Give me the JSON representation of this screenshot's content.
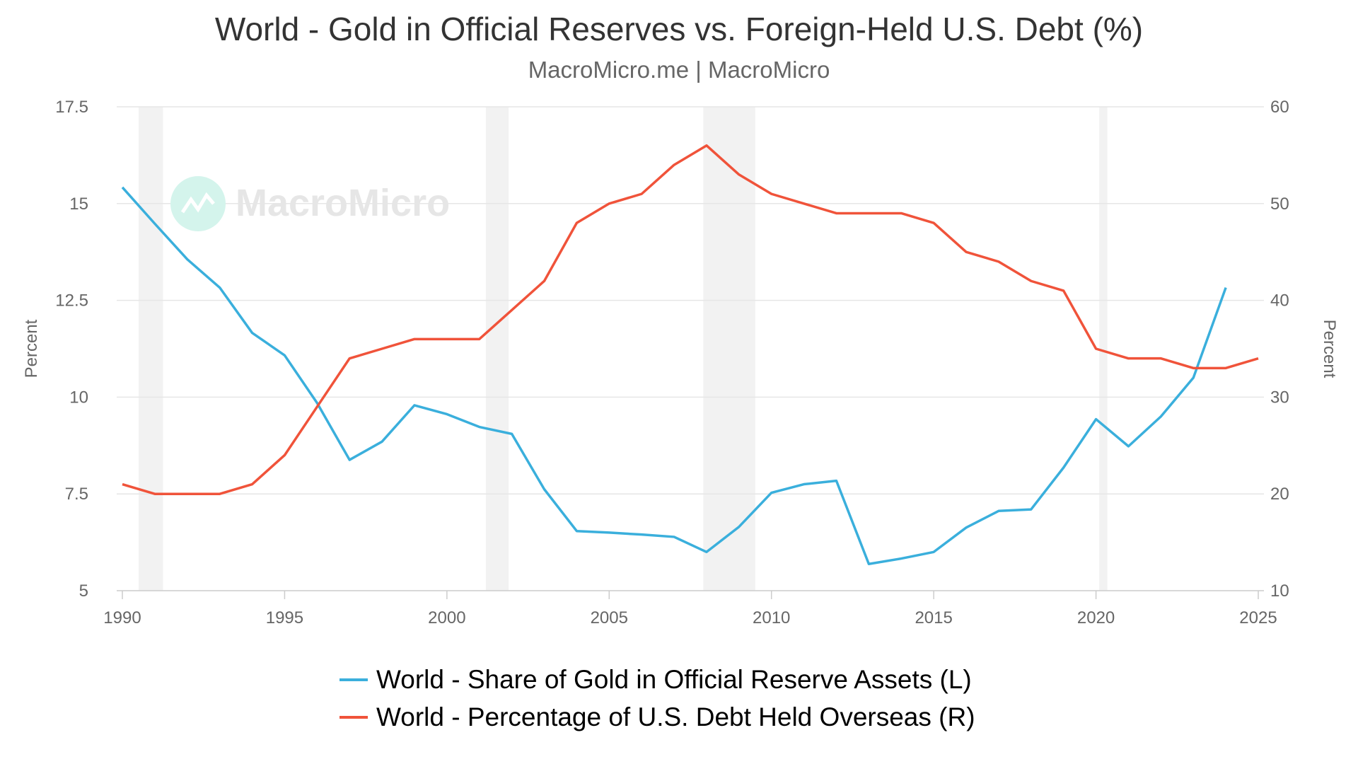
{
  "chart_data": {
    "type": "line",
    "title": "World - Gold in Official Reserves vs. Foreign-Held U.S. Debt (%)",
    "subtitle": "MacroMicro.me | MacroMicro",
    "watermark": "MacroMicro",
    "xlabel": "",
    "ylabel_left": "Percent",
    "ylabel_right": "Percent",
    "xlim": [
      1990,
      2025
    ],
    "ylim_left": [
      5,
      17.5
    ],
    "ylim_right": [
      10,
      60
    ],
    "x_ticks": [
      "1990",
      "1995",
      "2000",
      "2005",
      "2010",
      "2015",
      "2020",
      "2025"
    ],
    "y_ticks_left": [
      "5",
      "7.5",
      "10",
      "12.5",
      "15",
      "17.5"
    ],
    "y_ticks_right": [
      "10",
      "20",
      "30",
      "40",
      "50",
      "60"
    ],
    "grid": true,
    "legend_position": "bottom",
    "recessions": [
      [
        1990.5,
        1991.25
      ],
      [
        2001.2,
        2001.9
      ],
      [
        2007.9,
        2009.5
      ],
      [
        2020.1,
        2020.35
      ]
    ],
    "series": [
      {
        "name": "World - Share of Gold in Official Reserve Assets (L)",
        "axis": "left",
        "color": "#3AAFDC",
        "x": [
          1990,
          1991,
          1992,
          1993,
          1994,
          1995,
          1996,
          1997,
          1998,
          1999,
          2000,
          2001,
          2002,
          2003,
          2004,
          2005,
          2006,
          2007,
          2008,
          2009,
          2010,
          2011,
          2012,
          2013,
          2014,
          2015,
          2016,
          2017,
          2018,
          2019,
          2020,
          2021,
          2022,
          2023,
          2024
        ],
        "values": [
          15.42,
          14.48,
          13.56,
          12.83,
          11.66,
          11.08,
          9.85,
          8.38,
          8.85,
          9.79,
          9.56,
          9.23,
          9.05,
          7.62,
          6.54,
          6.5,
          6.45,
          6.39,
          6.0,
          6.65,
          7.53,
          7.75,
          7.84,
          5.69,
          5.83,
          6.0,
          6.63,
          7.06,
          7.1,
          8.18,
          9.43,
          8.73,
          9.5,
          10.5,
          12.83
        ]
      },
      {
        "name": "World - Percentage of U.S. Debt Held Overseas (R)",
        "axis": "right",
        "color": "#F0533A",
        "x": [
          1990,
          1991,
          1992,
          1993,
          1994,
          1995,
          1996,
          1997,
          1998,
          1999,
          2000,
          2001,
          2002,
          2003,
          2004,
          2005,
          2006,
          2007,
          2008,
          2009,
          2010,
          2011,
          2012,
          2013,
          2014,
          2015,
          2016,
          2017,
          2018,
          2019,
          2020,
          2021,
          2022,
          2023,
          2024,
          2025
        ],
        "values": [
          21,
          20,
          20,
          20,
          21,
          24,
          29,
          34,
          35,
          36,
          36,
          36,
          39,
          42,
          48,
          50,
          51,
          54,
          56,
          53,
          51,
          50,
          49,
          49,
          49,
          48,
          45,
          44,
          42,
          41,
          35,
          34,
          34,
          33,
          33,
          34
        ]
      }
    ]
  }
}
